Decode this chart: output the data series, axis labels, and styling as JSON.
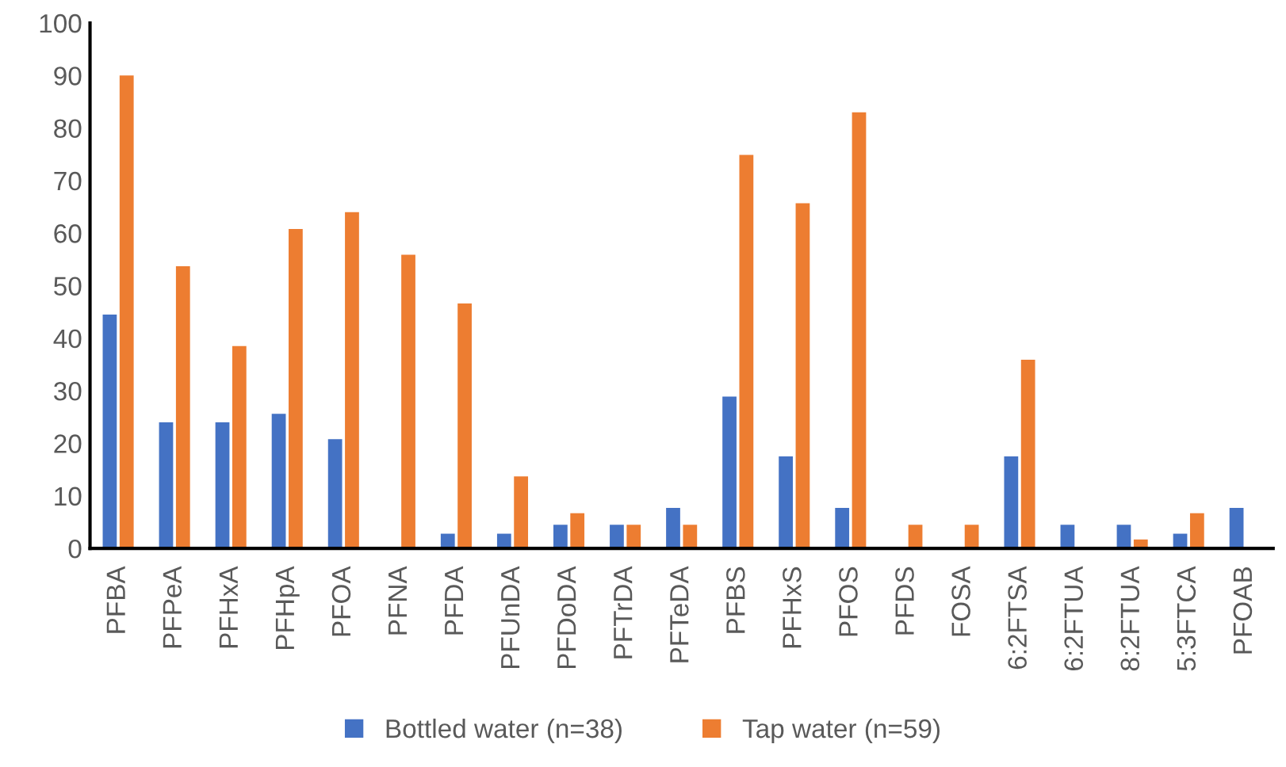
{
  "chart_data": {
    "type": "bar",
    "categories": [
      "PFBA",
      "PFPeA",
      "PFHxA",
      "PFHpA",
      "PFOA",
      "PFNA",
      "PFDA",
      "PFUnDA",
      "PFDoDA",
      "PFTrDA",
      "PFTeDA",
      "PFBS",
      "PFHxS",
      "PFOS",
      "PFDS",
      "FOSA",
      "6:2FTSA",
      "6:2FTUA",
      "8:2FTUA",
      "5:3FTCA",
      "PFOAB"
    ],
    "series": [
      {
        "name": "Bottled water (n=38)",
        "color": "#4472c4",
        "values": [
          44.5,
          24.0,
          24.0,
          25.6,
          20.8,
          0,
          2.8,
          2.8,
          4.5,
          4.5,
          7.7,
          28.9,
          17.5,
          7.7,
          0,
          0,
          17.5,
          4.5,
          4.5,
          2.8,
          7.7
        ]
      },
      {
        "name": "Tap water (n=59)",
        "color": "#ed7d31",
        "values": [
          90.0,
          53.7,
          38.5,
          60.8,
          64.0,
          55.9,
          46.6,
          13.7,
          6.7,
          4.5,
          4.5,
          74.9,
          65.7,
          83.0,
          4.5,
          4.5,
          35.9,
          0,
          1.7,
          6.7,
          0
        ]
      }
    ],
    "ylim": [
      0,
      100
    ],
    "yticks": [
      0,
      10,
      20,
      30,
      40,
      50,
      60,
      70,
      80,
      90,
      100
    ],
    "grid": false,
    "legend": "bottom"
  }
}
